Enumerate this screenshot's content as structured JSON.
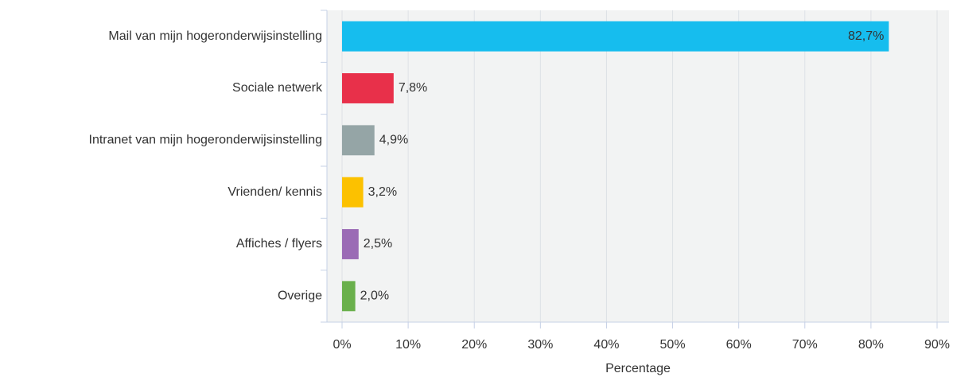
{
  "chart_data": {
    "type": "bar",
    "orientation": "horizontal",
    "categories": [
      "Mail van mijn hogeronderwijsinstelling",
      "Sociale netwerk",
      "Intranet van mijn hogeronderwijsinstelling",
      "Vrienden/ kennis",
      "Affiches / flyers",
      "Overige"
    ],
    "values": [
      82.7,
      7.8,
      4.9,
      3.2,
      2.5,
      2.0
    ],
    "value_labels": [
      "82,7%",
      "7,8%",
      "4,9%",
      "3,2%",
      "2,5%",
      "2,0%"
    ],
    "colors": [
      "#16bdee",
      "#e8304a",
      "#95a5a6",
      "#fcc100",
      "#9b6bb5",
      "#6ab04c"
    ],
    "xlabel": "Percentage",
    "xlim": [
      0,
      90
    ],
    "xticks": [
      {
        "value": 0,
        "label": "0%"
      },
      {
        "value": 10,
        "label": "10%"
      },
      {
        "value": 20,
        "label": "20%"
      },
      {
        "value": 30,
        "label": "30%"
      },
      {
        "value": 40,
        "label": "40%"
      },
      {
        "value": 50,
        "label": "50%"
      },
      {
        "value": 60,
        "label": "60%"
      },
      {
        "value": 70,
        "label": "70%"
      },
      {
        "value": 80,
        "label": "80%"
      },
      {
        "value": 90,
        "label": "90%"
      }
    ],
    "grid": true
  }
}
